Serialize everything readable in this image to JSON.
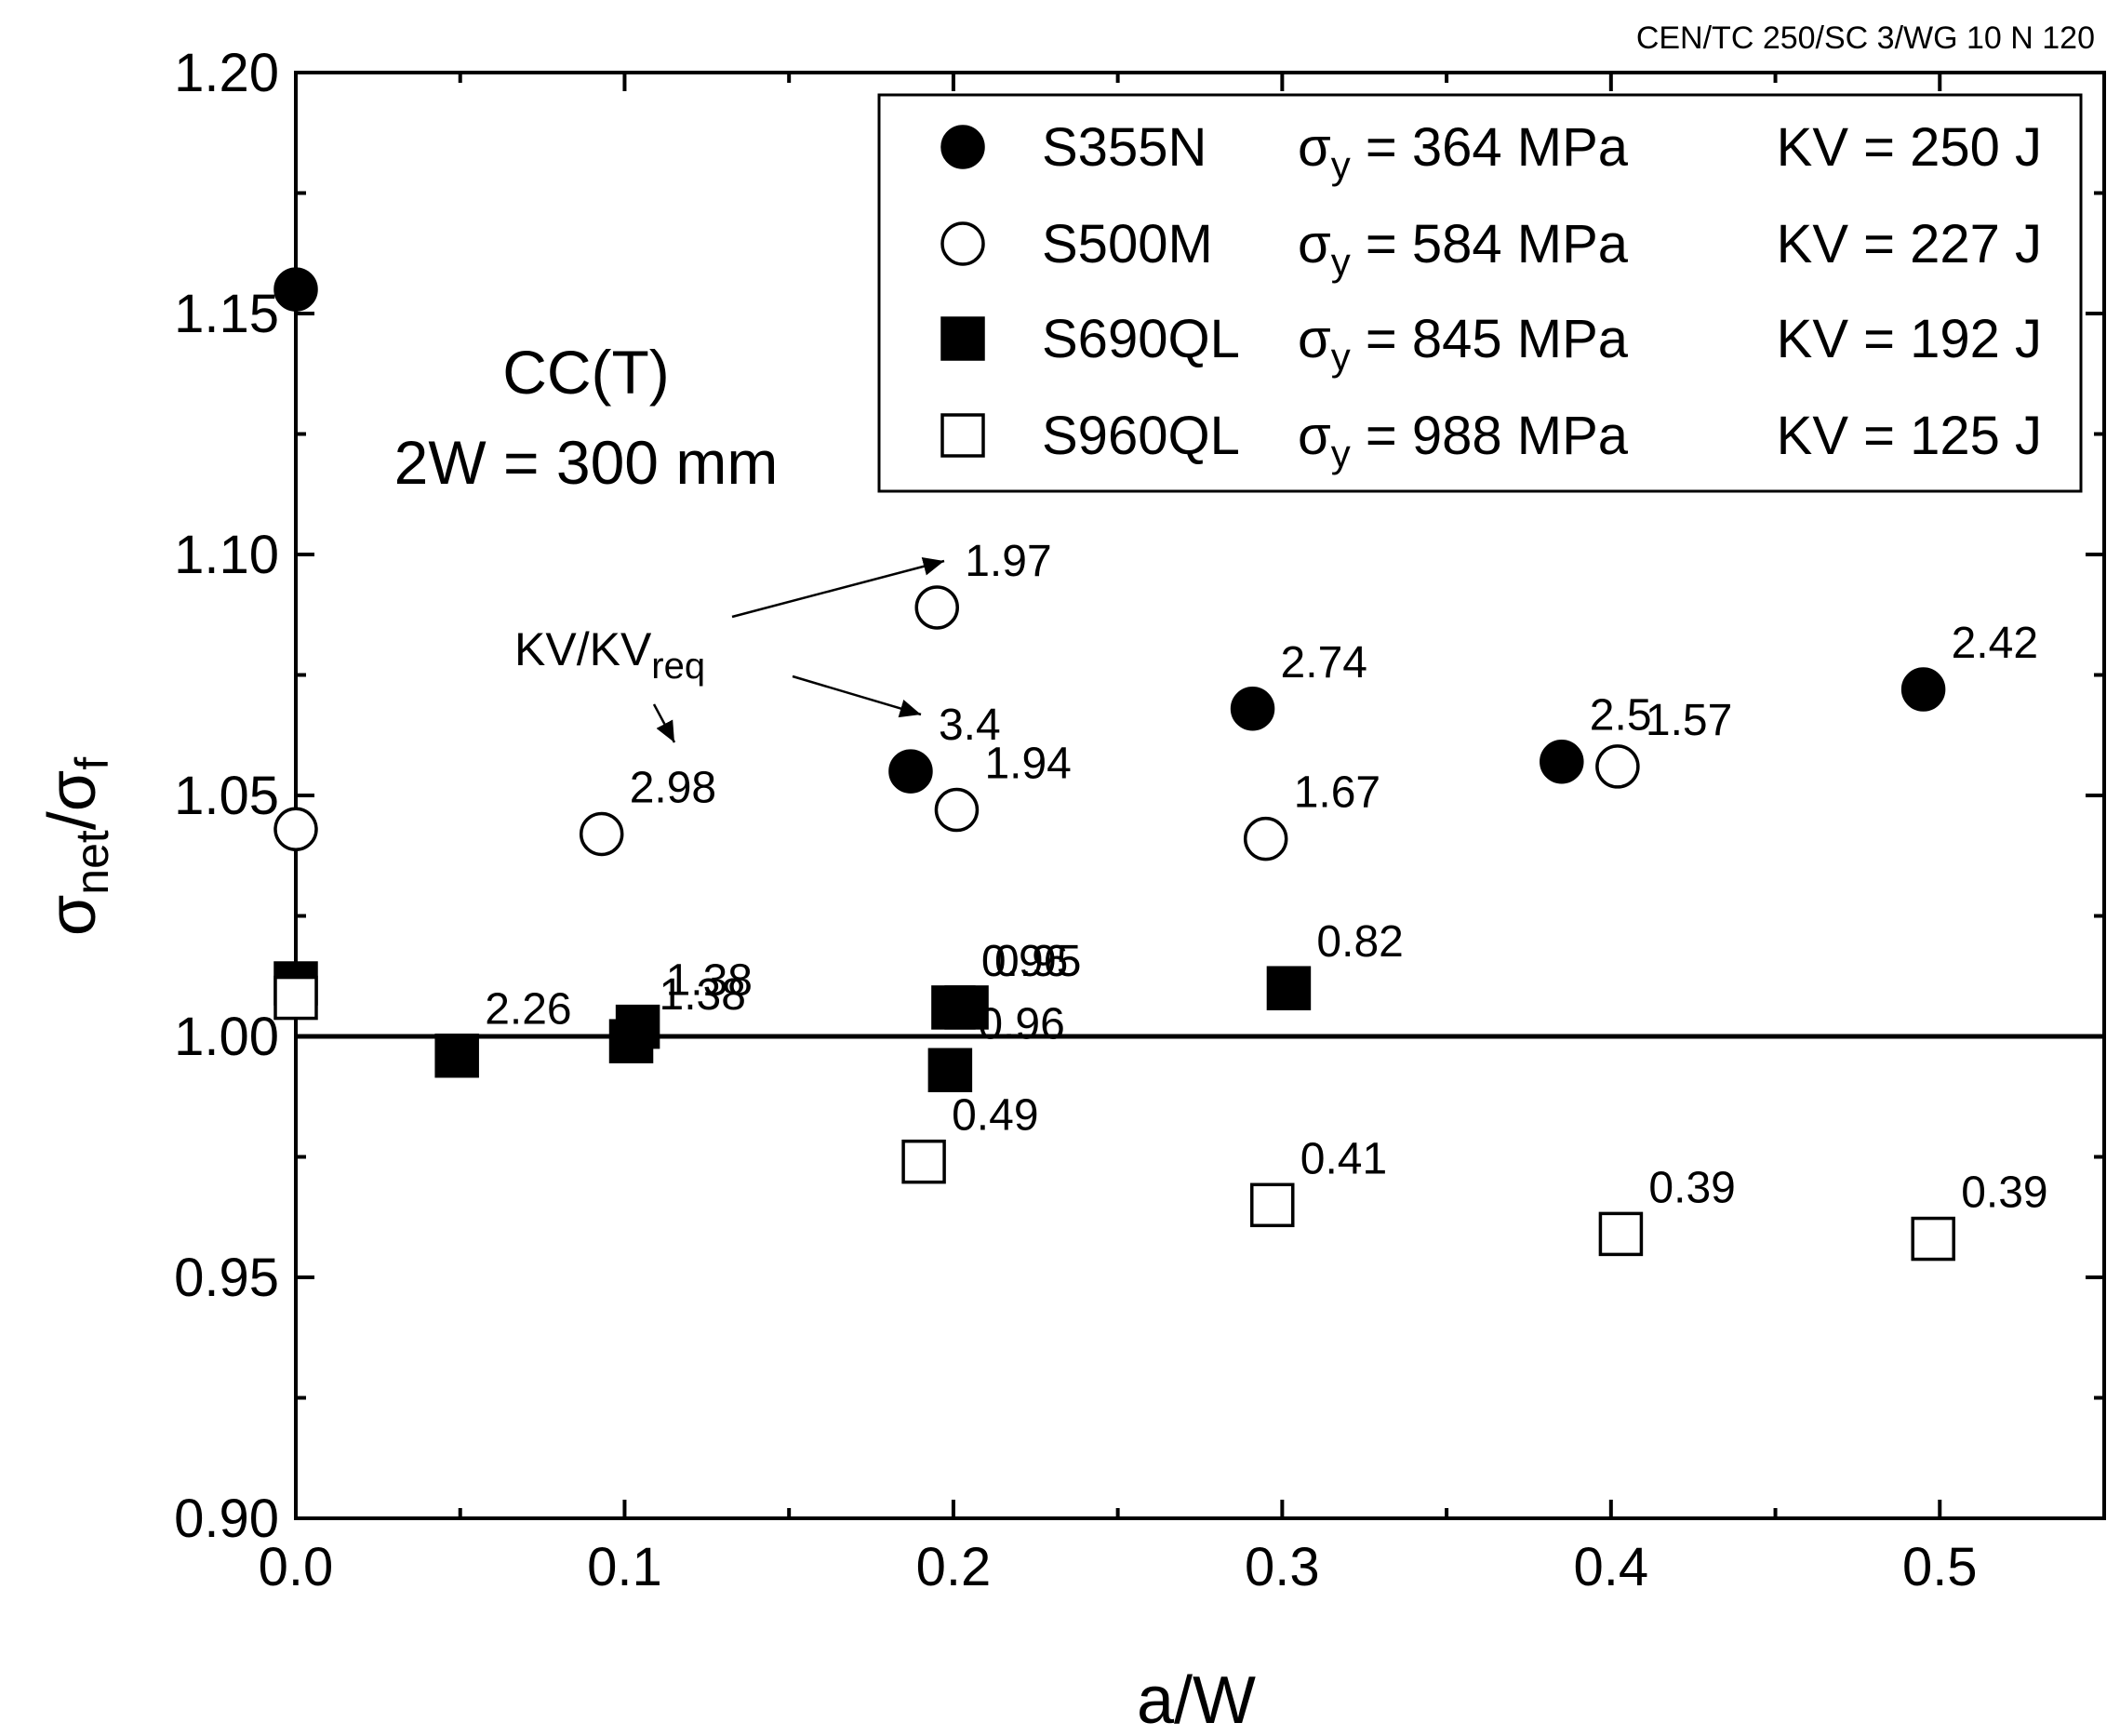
{
  "document_reference": "CEN/TC 250/SC 3/WG 10 N 120",
  "chart_data": {
    "type": "scatter",
    "xlabel": "a/W",
    "ylabel": {
      "base": "σ",
      "sub1": "net",
      "sep": "/σ",
      "sub2": "f"
    },
    "xlim": [
      0.0,
      0.55
    ],
    "ylim": [
      0.9,
      1.2
    ],
    "x_ticks": [
      "0.0",
      "0.1",
      "0.2",
      "0.3",
      "0.4",
      "0.5"
    ],
    "y_ticks": [
      "0.90",
      "0.95",
      "1.00",
      "1.05",
      "1.10",
      "1.15",
      "1.20"
    ],
    "grid": false,
    "legend_position": "top-right",
    "reference_line": {
      "y": 1.0
    },
    "specimen_note": {
      "line1": "CC(T)",
      "line2": "2W = 300 mm"
    },
    "annotation": {
      "text": "KV/KV",
      "sub": "req"
    },
    "series": [
      {
        "name": "S355N",
        "marker": "filled-circle",
        "legend": {
          "sigma": "σ",
          "sub": "y",
          "yield": " = 364 MPa",
          "kv": "KV = 250 J"
        },
        "points": [
          {
            "x": 0.0,
            "y": 1.155,
            "label": ""
          },
          {
            "x": 0.187,
            "y": 1.055,
            "label": "3.4"
          },
          {
            "x": 0.291,
            "y": 1.068,
            "label": "2.74"
          },
          {
            "x": 0.385,
            "y": 1.057,
            "label": "2.5"
          },
          {
            "x": 0.495,
            "y": 1.072,
            "label": "2.42"
          }
        ]
      },
      {
        "name": "S500M",
        "marker": "open-circle",
        "legend": {
          "sigma": "σ",
          "sub": "y",
          "yield": " = 584 MPa",
          "kv": "KV = 227 J"
        },
        "points": [
          {
            "x": 0.0,
            "y": 1.043,
            "label": ""
          },
          {
            "x": 0.093,
            "y": 1.042,
            "label": "2.98"
          },
          {
            "x": 0.195,
            "y": 1.089,
            "label": "1.97"
          },
          {
            "x": 0.201,
            "y": 1.047,
            "label": "1.94"
          },
          {
            "x": 0.295,
            "y": 1.041,
            "label": "1.67"
          },
          {
            "x": 0.402,
            "y": 1.056,
            "label": "1.57"
          }
        ]
      },
      {
        "name": "S690QL",
        "marker": "filled-square",
        "legend": {
          "sigma": "σ",
          "sub": "y",
          "yield": " = 845 MPa",
          "kv": "KV = 192 J"
        },
        "points": [
          {
            "x": 0.0,
            "y": 1.011,
            "label": ""
          },
          {
            "x": 0.049,
            "y": 0.996,
            "label": "2.26"
          },
          {
            "x": 0.104,
            "y": 1.002,
            "label": "1.38"
          },
          {
            "x": 0.102,
            "y": 0.999,
            "label": "1.38"
          },
          {
            "x": 0.204,
            "y": 1.006,
            "label": "0.95"
          },
          {
            "x": 0.2,
            "y": 1.006,
            "label": "0.96"
          },
          {
            "x": 0.199,
            "y": 0.993,
            "label": "0.96"
          },
          {
            "x": 0.302,
            "y": 1.01,
            "label": "0.82"
          }
        ]
      },
      {
        "name": "S960QL",
        "marker": "open-square",
        "legend": {
          "sigma": "σ",
          "sub": "y",
          "yield": " = 988 MPa",
          "kv": "KV = 125 J"
        },
        "points": [
          {
            "x": 0.0,
            "y": 1.008,
            "label": ""
          },
          {
            "x": 0.191,
            "y": 0.974,
            "label": "0.49"
          },
          {
            "x": 0.297,
            "y": 0.965,
            "label": "0.41"
          },
          {
            "x": 0.403,
            "y": 0.959,
            "label": "0.39"
          },
          {
            "x": 0.498,
            "y": 0.958,
            "label": "0.39"
          }
        ]
      }
    ]
  }
}
